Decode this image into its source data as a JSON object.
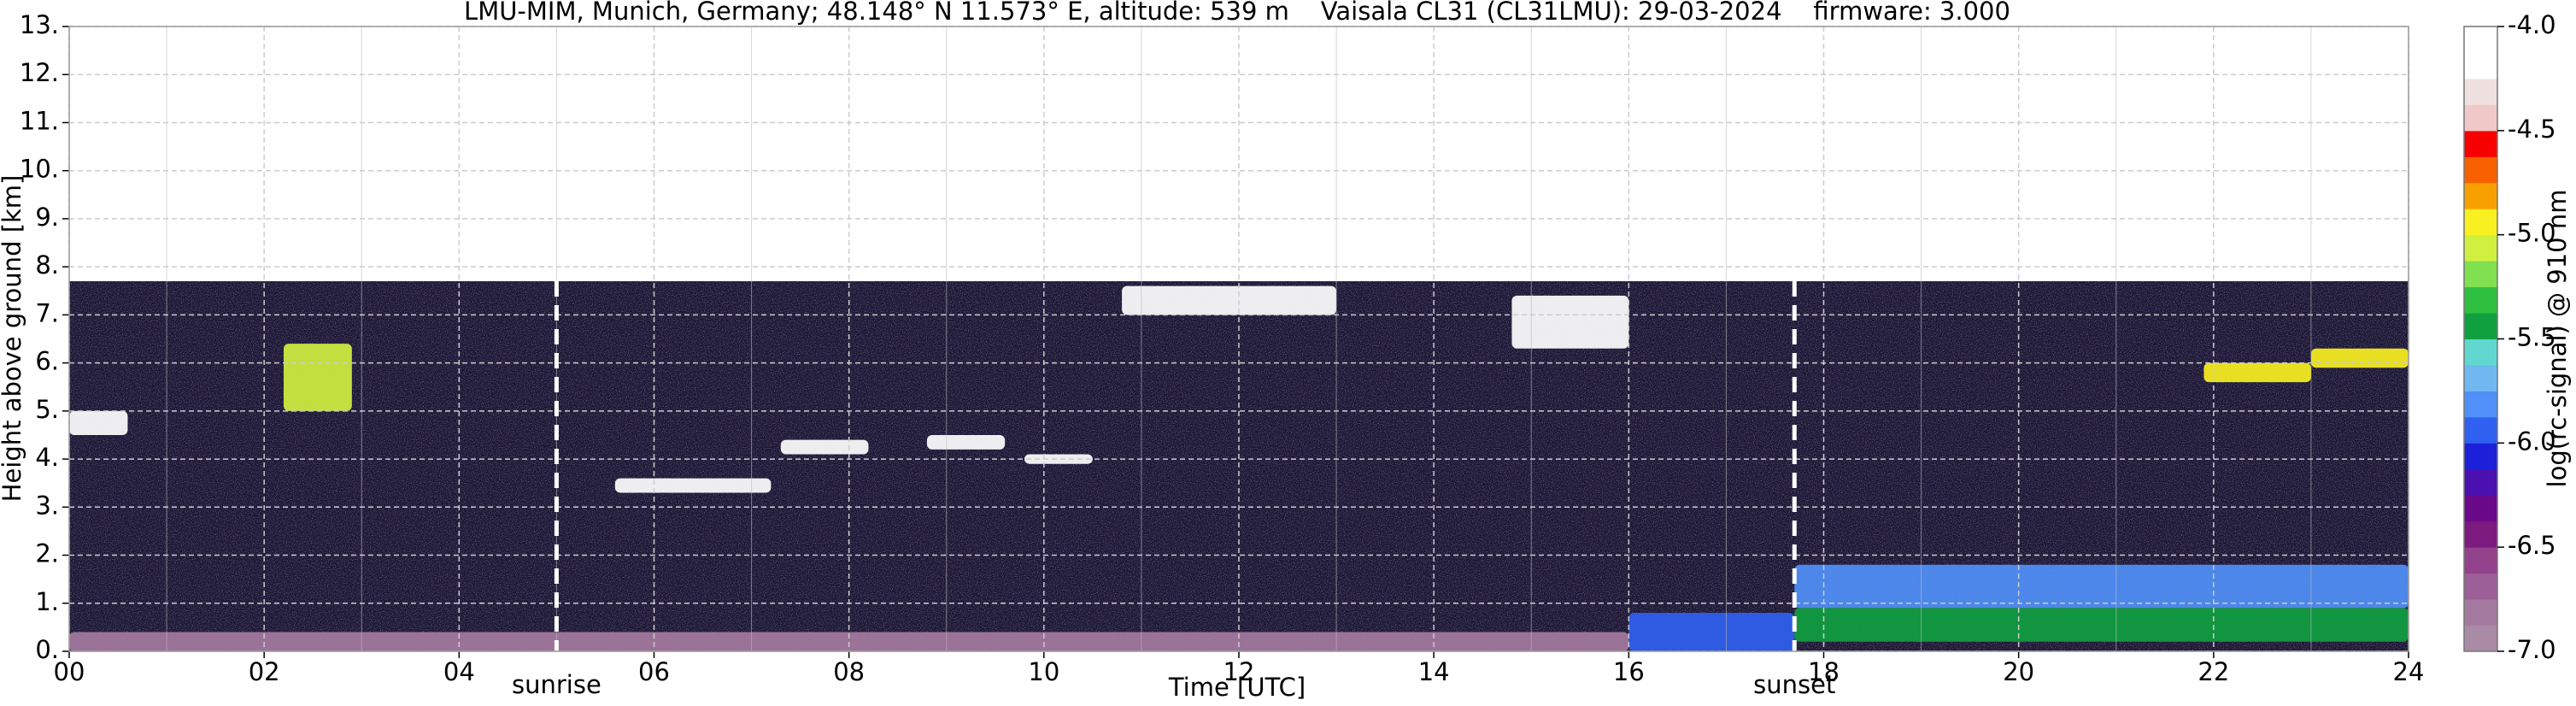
{
  "chart_data": {
    "type": "heatmap",
    "title": "LMU-MIM, Munich, Germany; 48.148° N 11.573° E, altitude: 539 m    Vaisala CL31 (CL31LMU): 29-03-2024    firmware: 3.000",
    "xlabel": "Time [UTC]",
    "ylabel": "Height above ground [km]",
    "colorbar_label": "log(rc-signal) @ 910 nm",
    "xlim": [
      0,
      24
    ],
    "xticks": [
      {
        "value": 0,
        "label": "00"
      },
      {
        "value": 2,
        "label": "02"
      },
      {
        "value": 4,
        "label": "04"
      },
      {
        "value": 6,
        "label": "06"
      },
      {
        "value": 8,
        "label": "08"
      },
      10,
      12,
      14,
      16,
      18,
      20,
      22,
      24
    ],
    "x_minor_ticks": [
      1,
      3,
      5,
      7,
      9,
      11,
      13,
      15,
      17,
      19,
      21,
      23
    ],
    "ylim": [
      0,
      13
    ],
    "yticks": [
      {
        "value": 0,
        "label": "0."
      },
      {
        "value": 1,
        "label": "1."
      },
      {
        "value": 2,
        "label": "2."
      },
      {
        "value": 3,
        "label": "3."
      },
      {
        "value": 4,
        "label": "4."
      },
      {
        "value": 5,
        "label": "5."
      },
      {
        "value": 6,
        "label": "6."
      },
      {
        "value": 7,
        "label": "7."
      },
      {
        "value": 8,
        "label": "8."
      },
      {
        "value": 9,
        "label": "9."
      },
      {
        "value": 10,
        "label": "10."
      },
      {
        "value": 11,
        "label": "11."
      },
      {
        "value": 12,
        "label": "12."
      },
      {
        "value": 13,
        "label": "13."
      }
    ],
    "clim": [
      -7,
      -4
    ],
    "cticks": [
      {
        "value": -7,
        "label": "-7.0"
      },
      -6.5,
      {
        "value": -6,
        "label": "-6.0"
      },
      -5.5,
      {
        "value": -5,
        "label": "-5.0"
      },
      -4.5,
      {
        "value": -4,
        "label": "-4.0"
      }
    ],
    "colormap": [
      "#a98ba5",
      "#a57aa0",
      "#9c5f97",
      "#93428c",
      "#7d1a80",
      "#6a0a8a",
      "#4a10b0",
      "#1c20d8",
      "#3060f0",
      "#5090f8",
      "#70b8f0",
      "#60d8d0",
      "#10a040",
      "#30c040",
      "#80e050",
      "#d0f040",
      "#f8f020",
      "#f8a000",
      "#f86000",
      "#f80000",
      "#f0c8c8",
      "#f0e0e0",
      "#ffffff",
      "#ffffff"
    ],
    "data_top": 7.7,
    "background_value": -6.3,
    "layers": [
      {
        "x": [
          0,
          16
        ],
        "y": [
          0,
          0.4
        ],
        "value": -6.8
      },
      {
        "x": [
          16,
          17.7
        ],
        "y": [
          0,
          0.8
        ],
        "value": -6.0
      },
      {
        "x": [
          17.7,
          24
        ],
        "y": [
          0.9,
          1.8
        ],
        "value": -5.8
      },
      {
        "x": [
          17.7,
          24
        ],
        "y": [
          0.2,
          0.9
        ],
        "value": -5.4
      },
      {
        "x": [
          0,
          0.6
        ],
        "y": [
          4.5,
          5.0
        ],
        "value": -4.1
      },
      {
        "x": [
          2.2,
          2.9
        ],
        "y": [
          5.0,
          6.4
        ],
        "value": -5.1
      },
      {
        "x": [
          5.6,
          7.2
        ],
        "y": [
          3.3,
          3.6
        ],
        "value": -4.1
      },
      {
        "x": [
          7.3,
          8.2
        ],
        "y": [
          4.1,
          4.4
        ],
        "value": -4.1
      },
      {
        "x": [
          8.8,
          9.6
        ],
        "y": [
          4.2,
          4.5
        ],
        "value": -4.1
      },
      {
        "x": [
          9.8,
          10.5
        ],
        "y": [
          3.9,
          4.1
        ],
        "value": -4.1
      },
      {
        "x": [
          10.8,
          13
        ],
        "y": [
          7.0,
          7.6
        ],
        "value": -4.2
      },
      {
        "x": [
          14.8,
          16
        ],
        "y": [
          6.3,
          7.4
        ],
        "value": -4.2
      },
      {
        "x": [
          21.9,
          23
        ],
        "y": [
          5.6,
          6.0
        ],
        "value": -4.9
      },
      {
        "x": [
          23,
          24
        ],
        "y": [
          5.9,
          6.3
        ],
        "value": -5.0
      }
    ],
    "vlines": [
      {
        "x": 5.0,
        "label": "sunrise"
      },
      {
        "x": 17.7,
        "label": "sunset"
      }
    ]
  }
}
